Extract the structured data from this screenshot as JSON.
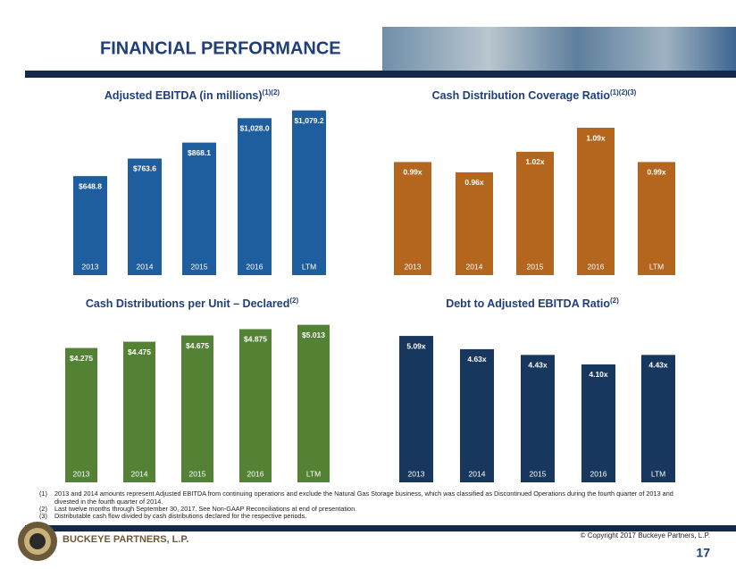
{
  "header": {
    "title": "FINANCIAL PERFORMANCE"
  },
  "chart_data": [
    {
      "type": "bar",
      "title": "Adjusted EBITDA (in millions)",
      "title_superscript": "(1)(2)",
      "categories": [
        "2013",
        "2014",
        "2015",
        "2016",
        "LTM"
      ],
      "values": [
        648.8,
        763.6,
        868.1,
        1028.0,
        1079.2
      ],
      "value_labels": [
        "$648.8",
        "$763.6",
        "$868.1",
        "$1,028.0",
        "$1,079.2"
      ],
      "color": "#1f5e9e",
      "ylim": [
        0,
        1100
      ]
    },
    {
      "type": "bar",
      "title": "Cash Distribution Coverage Ratio",
      "title_superscript": "(1)(2)(3)",
      "categories": [
        "2013",
        "2014",
        "2015",
        "2016",
        "LTM"
      ],
      "values": [
        0.99,
        0.96,
        1.02,
        1.09,
        0.99
      ],
      "value_labels": [
        "0.99x",
        "0.96x",
        "1.02x",
        "1.09x",
        "0.99x"
      ],
      "color": "#b4661f",
      "ylim": [
        0.66,
        1.15
      ]
    },
    {
      "type": "bar",
      "title": "Cash Distributions per Unit – Declared",
      "title_superscript": "(2)",
      "categories": [
        "2013",
        "2014",
        "2015",
        "2016",
        "LTM"
      ],
      "values": [
        4.275,
        4.475,
        4.675,
        4.875,
        5.013
      ],
      "value_labels": [
        "$4.275",
        "$4.475",
        "$4.675",
        "$4.875",
        "$5.013"
      ],
      "color": "#548235",
      "ylim": [
        0,
        5.4
      ]
    },
    {
      "type": "bar",
      "title": "Debt to Adjusted EBITDA Ratio",
      "title_superscript": "(2)",
      "categories": [
        "2013",
        "2014",
        "2015",
        "2016",
        "LTM"
      ],
      "values": [
        5.09,
        4.63,
        4.43,
        4.1,
        4.43
      ],
      "value_labels": [
        "5.09x",
        "4.63x",
        "4.43x",
        "4.10x",
        "4.43x"
      ],
      "color": "#17375e",
      "ylim": [
        0,
        5.9
      ]
    }
  ],
  "footnotes": [
    {
      "marker": "(1)",
      "text": "2013 and 2014 amounts represent Adjusted EBITDA from continuing operations and exclude the Natural Gas Storage business, which was classified as Discontinued Operations during the fourth quarter of 2013 and divested in the fourth quarter of 2014."
    },
    {
      "marker": "(2)",
      "text": "Last twelve months through September 30, 2017. See Non-GAAP Reconciliations at end of presentation."
    },
    {
      "marker": "(3)",
      "text": "Distributable cash flow divided by cash distributions declared for the respective periods."
    }
  ],
  "footer": {
    "company": "BUCKEYE PARTNERS, L.P.",
    "copyright": "© Copyright 2017 Buckeye Partners, L.P.",
    "page": "17"
  }
}
